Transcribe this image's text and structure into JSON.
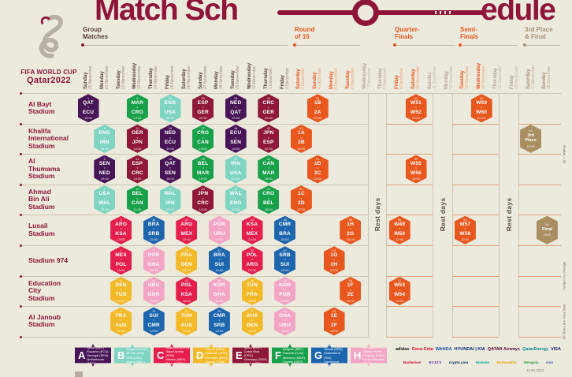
{
  "title": {
    "left": "Match Sch",
    "right": "edule"
  },
  "logo": {
    "wordmark_line1": "FIFA WORLD CUP",
    "wordmark_line2": "Qatar2022"
  },
  "stages": [
    {
      "id": "group",
      "label": "Group\nMatches"
    },
    {
      "id": "r16",
      "label": "Round\nof 16"
    },
    {
      "id": "qf",
      "label": "Quarter-\nFinals"
    },
    {
      "id": "sf",
      "label": "Semi-\nFinals"
    },
    {
      "id": "final",
      "label": "3rd Place\n& Final"
    }
  ],
  "rest_label": "Rest days",
  "versus_label": "v",
  "dates": [
    {
      "day": "Sunday",
      "date": "20 November",
      "phase": "group"
    },
    {
      "day": "Monday",
      "date": "21 November",
      "phase": "group"
    },
    {
      "day": "Tuesday",
      "date": "22 November",
      "phase": "group"
    },
    {
      "day": "Wednesday",
      "date": "23 November",
      "phase": "group"
    },
    {
      "day": "Thursday",
      "date": "24 November",
      "phase": "group"
    },
    {
      "day": "Friday",
      "date": "25 November",
      "phase": "group"
    },
    {
      "day": "Saturday",
      "date": "26 November",
      "phase": "group"
    },
    {
      "day": "Sunday",
      "date": "27 November",
      "phase": "group"
    },
    {
      "day": "Monday",
      "date": "28 November",
      "phase": "group"
    },
    {
      "day": "Tuesday",
      "date": "29 November",
      "phase": "group"
    },
    {
      "day": "Wednesday",
      "date": "30 November",
      "phase": "group"
    },
    {
      "day": "Thursday",
      "date": "1 December",
      "phase": "group"
    },
    {
      "day": "Friday",
      "date": "2 December",
      "phase": "group"
    },
    {
      "day": "Saturday",
      "date": "3 December",
      "phase": "ko"
    },
    {
      "day": "Sunday",
      "date": "4 December",
      "phase": "ko"
    },
    {
      "day": "Monday",
      "date": "5 December",
      "phase": "ko"
    },
    {
      "day": "Tuesday",
      "date": "6 December",
      "phase": "ko"
    },
    {
      "day": "Wednesday",
      "date": "7 December",
      "phase": "rest"
    },
    {
      "day": "Thursday",
      "date": "8 December",
      "phase": "rest"
    },
    {
      "day": "Friday",
      "date": "9 December",
      "phase": "ko"
    },
    {
      "day": "Saturday",
      "date": "10 December",
      "phase": "ko"
    },
    {
      "day": "Sunday",
      "date": "11 December",
      "phase": "rest"
    },
    {
      "day": "Monday",
      "date": "12 December",
      "phase": "rest"
    },
    {
      "day": "Tuesday",
      "date": "13 December",
      "phase": "ko"
    },
    {
      "day": "Wednesday",
      "date": "14 December",
      "phase": "ko"
    },
    {
      "day": "Thursday",
      "date": "15 December",
      "phase": "rest"
    },
    {
      "day": "Friday",
      "date": "16 December",
      "phase": "rest"
    },
    {
      "day": "Saturday",
      "date": "17 December",
      "phase": "final"
    },
    {
      "day": "Sunday",
      "date": "18 December",
      "phase": "final"
    }
  ],
  "stadiums": [
    {
      "name": "Al Bayt\nStadium",
      "matches": [
        {
          "num": "1",
          "home": "QAT",
          "away": "ECU",
          "group": "A",
          "time": "19:00",
          "col": 0
        },
        {
          "num": "9",
          "home": "MAR",
          "away": "CRO",
          "group": "F",
          "time": "13:00",
          "col": 3
        },
        {
          "num": "20",
          "home": "ENG",
          "away": "USA",
          "group": "B",
          "time": "22:00",
          "col": 5
        },
        {
          "num": "28",
          "home": "ESP",
          "away": "GER",
          "group": "E",
          "time": "22:00",
          "col": 7
        },
        {
          "num": "35",
          "home": "NED",
          "away": "QAT",
          "group": "A",
          "time": "18:00",
          "col": 9
        },
        {
          "num": "44",
          "home": "CRC",
          "away": "GER",
          "group": "E",
          "time": "22:00",
          "col": 11
        },
        {
          "num": "52",
          "home": "1B",
          "away": "2A",
          "group": "KO",
          "time": "22:00",
          "col": 14
        },
        {
          "num": "60",
          "home": "W51",
          "away": "W52",
          "group": "KO",
          "time": "22:00",
          "col": 20
        },
        {
          "num": "62",
          "home": "W59",
          "away": "W60",
          "group": "KO",
          "time": "22:00",
          "col": 24
        }
      ]
    },
    {
      "name": "Khalifa\nInternational\nStadium",
      "matches": [
        {
          "num": "2",
          "home": "ENG",
          "away": "IRN",
          "group": "B",
          "time": "16:00",
          "col": 1
        },
        {
          "num": "10",
          "home": "GER",
          "away": "JPN",
          "group": "E",
          "time": "16:00",
          "col": 3
        },
        {
          "num": "19",
          "home": "NED",
          "away": "ECU",
          "group": "A",
          "time": "19:00",
          "col": 5
        },
        {
          "num": "27",
          "home": "CRO",
          "away": "CAN",
          "group": "F",
          "time": "19:00",
          "col": 7
        },
        {
          "num": "36",
          "home": "ECU",
          "away": "SEN",
          "group": "A",
          "time": "18:00",
          "col": 9
        },
        {
          "num": "43",
          "home": "JPN",
          "away": "ESP",
          "group": "E",
          "time": "22:00",
          "col": 11
        },
        {
          "num": "49",
          "home": "1A",
          "away": "2B",
          "group": "KO",
          "time": "18:00",
          "col": 13
        },
        {
          "num": "63",
          "label": "3rd\nPlace",
          "group": "TF",
          "time": "18:00",
          "col": 27
        }
      ]
    },
    {
      "name": "Al\nThumama\nStadium",
      "matches": [
        {
          "num": "3",
          "home": "SEN",
          "away": "NED",
          "group": "A",
          "time": "19:00",
          "col": 1
        },
        {
          "num": "11",
          "home": "ESP",
          "away": "CRC",
          "group": "E",
          "time": "19:00",
          "col": 3
        },
        {
          "num": "18",
          "home": "QAT",
          "away": "SEN",
          "group": "A",
          "time": "16:00",
          "col": 5
        },
        {
          "num": "26",
          "home": "BEL",
          "away": "MAR",
          "group": "F",
          "time": "16:00",
          "col": 7
        },
        {
          "num": "34",
          "home": "IRN",
          "away": "USA",
          "group": "B",
          "time": "22:00",
          "col": 9
        },
        {
          "num": "42",
          "home": "CAN",
          "away": "MAR",
          "group": "F",
          "time": "18:00",
          "col": 11
        },
        {
          "num": "51",
          "home": "1D",
          "away": "2C",
          "group": "KO",
          "time": "18:00",
          "col": 14
        },
        {
          "num": "59",
          "home": "W55",
          "away": "W56",
          "group": "KO",
          "time": "18:00",
          "col": 20
        }
      ]
    },
    {
      "name": "Ahmad\nBin Ali\nStadium",
      "matches": [
        {
          "num": "4",
          "home": "USA",
          "away": "WAL",
          "group": "B",
          "time": "22:00",
          "col": 1
        },
        {
          "num": "12",
          "home": "BEL",
          "away": "CAN",
          "group": "F",
          "time": "22:00",
          "col": 3
        },
        {
          "num": "17",
          "home": "WAL",
          "away": "IRN",
          "group": "B",
          "time": "13:00",
          "col": 5
        },
        {
          "num": "25",
          "home": "JPN",
          "away": "CRC",
          "group": "E",
          "time": "13:00",
          "col": 7
        },
        {
          "num": "33",
          "home": "WAL",
          "away": "ENG",
          "group": "B",
          "time": "22:00",
          "col": 9
        },
        {
          "num": "41",
          "home": "CRO",
          "away": "BEL",
          "group": "F",
          "time": "18:00",
          "col": 11
        },
        {
          "num": "50",
          "home": "1C",
          "away": "2D",
          "group": "KO",
          "time": "22:00",
          "col": 13
        }
      ]
    },
    {
      "name": "Lusail\nStadium",
      "matches": [
        {
          "num": "5",
          "home": "ARG",
          "away": "KSA",
          "group": "C",
          "time": "13:00",
          "col": 2
        },
        {
          "num": "16",
          "home": "BRA",
          "away": "SRB",
          "group": "G",
          "time": "22:00",
          "col": 4
        },
        {
          "num": "24",
          "home": "ARG",
          "away": "MEX",
          "group": "C",
          "time": "22:00",
          "col": 6
        },
        {
          "num": "32",
          "home": "POR",
          "away": "URU",
          "group": "H",
          "time": "22:00",
          "col": 8
        },
        {
          "num": "40",
          "home": "KSA",
          "away": "MEX",
          "group": "C",
          "time": "22:00",
          "col": 10
        },
        {
          "num": "48",
          "home": "CMR",
          "away": "BRA",
          "group": "G",
          "time": "22:00",
          "col": 12
        },
        {
          "num": "56",
          "home": "1H",
          "away": "2G",
          "group": "KO",
          "time": "22:00",
          "col": 16
        },
        {
          "num": "58",
          "home": "W49",
          "away": "W50",
          "group": "KO",
          "time": "22:00",
          "col": 19
        },
        {
          "num": "61",
          "home": "W57",
          "away": "W58",
          "group": "KO",
          "time": "22:00",
          "col": 23
        },
        {
          "num": "64",
          "label": "Final",
          "group": "TF",
          "time": "18:00",
          "col": 28
        }
      ]
    },
    {
      "name": "Stadium 974",
      "matches": [
        {
          "num": "7",
          "home": "MEX",
          "away": "POL",
          "group": "C",
          "time": "19:00",
          "col": 2
        },
        {
          "num": "15",
          "home": "POR",
          "away": "GHA",
          "group": "H",
          "time": "19:00",
          "col": 4
        },
        {
          "num": "23",
          "home": "FRA",
          "away": "DEN",
          "group": "D",
          "time": "19:00",
          "col": 6
        },
        {
          "num": "31",
          "home": "BRA",
          "away": "SUI",
          "group": "G",
          "time": "19:00",
          "col": 8
        },
        {
          "num": "39",
          "home": "POL",
          "away": "ARG",
          "group": "C",
          "time": "22:00",
          "col": 10
        },
        {
          "num": "47",
          "home": "SRB",
          "away": "SUI",
          "group": "G",
          "time": "22:00",
          "col": 12
        },
        {
          "num": "54",
          "home": "1G",
          "away": "2H",
          "group": "KO",
          "time": "22:00",
          "col": 15
        }
      ]
    },
    {
      "name": "Education\nCity\nStadium",
      "matches": [
        {
          "num": "6",
          "home": "DEN",
          "away": "TUN",
          "group": "D",
          "time": "16:00",
          "col": 2
        },
        {
          "num": "14",
          "home": "URU",
          "away": "KOR",
          "group": "H",
          "time": "16:00",
          "col": 4
        },
        {
          "num": "22",
          "home": "POL",
          "away": "KSA",
          "group": "C",
          "time": "16:00",
          "col": 6
        },
        {
          "num": "30",
          "home": "KOR",
          "away": "GHA",
          "group": "H",
          "time": "16:00",
          "col": 8
        },
        {
          "num": "38",
          "home": "TUN",
          "away": "FRA",
          "group": "D",
          "time": "18:00",
          "col": 10
        },
        {
          "num": "45",
          "home": "KOR",
          "away": "POR",
          "group": "H",
          "time": "18:00",
          "col": 12
        },
        {
          "num": "55",
          "home": "1F",
          "away": "2E",
          "group": "KO",
          "time": "18:00",
          "col": 16
        },
        {
          "num": "57",
          "home": "W53",
          "away": "W54",
          "group": "KO",
          "time": "18:00",
          "col": 19
        }
      ]
    },
    {
      "name": "Al Janoub\nStadium",
      "matches": [
        {
          "num": "8",
          "home": "FRA",
          "away": "AUS",
          "group": "D",
          "time": "22:00",
          "col": 2
        },
        {
          "num": "13",
          "home": "SUI",
          "away": "CMR",
          "group": "G",
          "time": "13:00",
          "col": 4
        },
        {
          "num": "21",
          "home": "TUN",
          "away": "AUS",
          "group": "D",
          "time": "13:00",
          "col": 6
        },
        {
          "num": "29",
          "home": "CMR",
          "away": "SRB",
          "group": "G",
          "time": "13:00",
          "col": 8
        },
        {
          "num": "37",
          "home": "AUS",
          "away": "DEN",
          "group": "D",
          "time": "18:00",
          "col": 10
        },
        {
          "num": "46",
          "home": "GHA",
          "away": "URU",
          "group": "H",
          "time": "18:00",
          "col": 12
        },
        {
          "num": "53",
          "home": "1E",
          "away": "2F",
          "group": "KO",
          "time": "18:00",
          "col": 15
        }
      ]
    }
  ],
  "legend": [
    {
      "letter": "A",
      "teams": [
        "Qatar (QAT)",
        "Ecuador (ECU)",
        "Senegal (SEN)",
        "Netherlands (NED)"
      ]
    },
    {
      "letter": "B",
      "teams": [
        "England (ENG)",
        "IR Iran (IRN)",
        "USA (USA)",
        "Wales (WAL)"
      ]
    },
    {
      "letter": "C",
      "teams": [
        "Argentina (ARG)",
        "Saudi Arabia (KSA)",
        "Mexico (MEX)",
        "Poland (POL)"
      ]
    },
    {
      "letter": "D",
      "teams": [
        "France (FRA)",
        "Australia (AUS)",
        "Denmark (DEN)",
        "Tunisia (TUN)"
      ]
    },
    {
      "letter": "E",
      "teams": [
        "Spain (ESP)",
        "Costa Rica (CRC)",
        "Germany (GER)",
        "Japan (JPN)"
      ]
    },
    {
      "letter": "F",
      "teams": [
        "Belgium (BEL)",
        "Canada (CAN)",
        "Morocco (MAR)",
        "Croatia (CRO)"
      ]
    },
    {
      "letter": "G",
      "teams": [
        "Brazil (BRA)",
        "Serbia (SRB)",
        "Switzerland (SUI)",
        "Cameroon (CMR)"
      ]
    },
    {
      "letter": "H",
      "teams": [
        "Portugal (POR)",
        "Ghana (GHA)",
        "Uruguay (URU)",
        "Korea Republic (KOR)"
      ]
    }
  ],
  "sponsors": {
    "row1": [
      {
        "name": "adidas",
        "color": "#111111"
      },
      {
        "name": "Coca-Cola",
        "color": "#d6001c"
      },
      {
        "name": "WANDA",
        "color": "#1553a0"
      },
      {
        "name": "HYUNDAI | KIA",
        "color": "#0a2972"
      },
      {
        "name": "QATAR Airways",
        "color": "#5c0631"
      },
      {
        "name": "QatarEnergy",
        "color": "#008f8a"
      },
      {
        "name": "VISA",
        "color": "#1a1f71"
      }
    ],
    "row2": [
      {
        "name": "Budweiser",
        "color": "#c8102e"
      },
      {
        "name": "BYJU'S",
        "color": "#673ab7"
      },
      {
        "name": "crypto.com",
        "color": "#0b2a63"
      },
      {
        "name": "Hisense",
        "color": "#00a8a0"
      },
      {
        "name": "McDonald's",
        "color": "#e6a500"
      },
      {
        "name": "Mengniu",
        "color": "#2e9e46"
      },
      {
        "name": "vivo",
        "color": "#3f51b5"
      }
    ]
  },
  "footnotes": [
    "W = Winner",
    "Subject to change",
    "All times are local time"
  ],
  "footer_date": "11.04.2022",
  "colors": {
    "background": "#ece9dd",
    "maroon": "#8e1538",
    "knockout_orange": "#e8571e",
    "final_tan": "#a98e62",
    "group_header_text": "#584437",
    "final_header_text": "#a59478",
    "rest_text": "#b3a795",
    "grid_line": "#cfc5b2",
    "ko_line": "#e2a47c",
    "groups": {
      "A": "#471556",
      "B": "#7fd4c2",
      "C": "#e51e4d",
      "D": "#f3b928",
      "E": "#8f1838",
      "F": "#18a04b",
      "G": "#1d66ae",
      "H": "#f3a5c6"
    }
  }
}
